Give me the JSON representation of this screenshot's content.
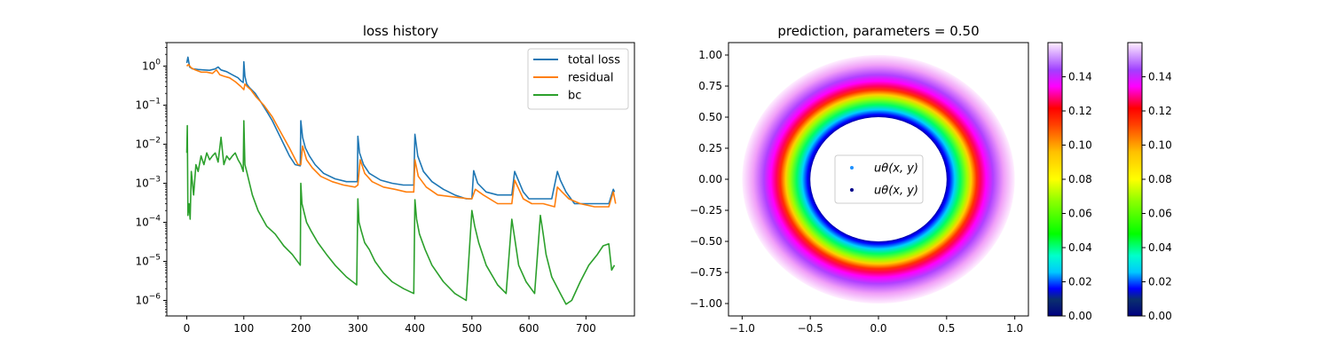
{
  "chart_data": [
    {
      "type": "line",
      "title": "loss history",
      "xlabel": "",
      "ylabel": "",
      "xlim": [
        -35,
        785
      ],
      "ylim": [
        4e-07,
        4
      ],
      "yscale": "log",
      "xticks": [
        "0",
        "100",
        "200",
        "300",
        "400",
        "500",
        "600",
        "700"
      ],
      "xtick_values": [
        0,
        100,
        200,
        300,
        400,
        500,
        600,
        700
      ],
      "yticks": [
        "10^-6",
        "10^-5",
        "10^-4",
        "10^-3",
        "10^-2",
        "10^-1",
        "10^0"
      ],
      "ytick_values": [
        1e-06,
        1e-05,
        0.0001,
        0.001,
        0.01,
        0.1,
        1
      ],
      "legend_position": "top-right",
      "series": [
        {
          "name": "total loss",
          "color": "#1f77b4",
          "x": [
            0,
            2,
            5,
            10,
            20,
            30,
            40,
            50,
            55,
            60,
            70,
            80,
            90,
            95,
            99,
            100,
            102,
            105,
            110,
            120,
            130,
            140,
            150,
            160,
            170,
            180,
            190,
            199,
            200,
            203,
            208,
            215,
            225,
            240,
            260,
            280,
            299,
            300,
            303,
            310,
            320,
            340,
            360,
            380,
            398,
            400,
            405,
            415,
            430,
            450,
            470,
            490,
            500,
            503,
            510,
            525,
            545,
            570,
            575,
            590,
            600,
            620,
            640,
            650,
            655,
            665,
            680,
            700,
            720,
            740,
            748,
            750
          ],
          "y": [
            1.2,
            1.7,
            0.95,
            0.85,
            0.82,
            0.8,
            0.78,
            0.85,
            0.95,
            0.8,
            0.72,
            0.6,
            0.5,
            0.42,
            0.38,
            1.3,
            0.55,
            0.35,
            0.28,
            0.2,
            0.12,
            0.07,
            0.04,
            0.02,
            0.01,
            0.005,
            0.003,
            0.0028,
            0.04,
            0.015,
            0.008,
            0.005,
            0.003,
            0.0018,
            0.0013,
            0.0011,
            0.0011,
            0.016,
            0.006,
            0.003,
            0.0018,
            0.0012,
            0.001,
            0.0009,
            0.0009,
            0.018,
            0.005,
            0.002,
            0.0011,
            0.0007,
            0.0005,
            0.0004,
            0.0004,
            0.0021,
            0.001,
            0.0006,
            0.0005,
            0.0005,
            0.002,
            0.0006,
            0.0004,
            0.0004,
            0.0004,
            0.002,
            0.0012,
            0.0006,
            0.0003,
            0.0003,
            0.0003,
            0.0003,
            0.0007,
            0.0006
          ]
        },
        {
          "name": "residual",
          "color": "#ff7f0e",
          "x": [
            0,
            3,
            8,
            15,
            25,
            35,
            45,
            52,
            58,
            65,
            75,
            85,
            95,
            100,
            102,
            106,
            112,
            122,
            135,
            150,
            165,
            180,
            195,
            200,
            203,
            210,
            220,
            235,
            255,
            275,
            295,
            300,
            304,
            312,
            325,
            345,
            365,
            385,
            398,
            400,
            406,
            420,
            440,
            465,
            495,
            500,
            506,
            520,
            545,
            570,
            575,
            590,
            605,
            625,
            645,
            650,
            658,
            670,
            690,
            715,
            740,
            748,
            752
          ],
          "y": [
            1.0,
            1.1,
            0.9,
            0.8,
            0.7,
            0.7,
            0.65,
            0.8,
            0.6,
            0.55,
            0.5,
            0.4,
            0.3,
            0.25,
            0.35,
            0.3,
            0.25,
            0.16,
            0.1,
            0.05,
            0.02,
            0.008,
            0.003,
            0.003,
            0.009,
            0.004,
            0.0025,
            0.0015,
            0.0011,
            0.0009,
            0.0008,
            0.0009,
            0.004,
            0.0018,
            0.0011,
            0.0008,
            0.0007,
            0.0006,
            0.0006,
            0.004,
            0.0015,
            0.0008,
            0.0005,
            0.00045,
            0.0004,
            0.0004,
            0.0007,
            0.0005,
            0.0003,
            0.0003,
            0.0012,
            0.0004,
            0.0003,
            0.0003,
            0.00025,
            0.0008,
            0.0006,
            0.0004,
            0.0003,
            0.00025,
            0.00025,
            0.0006,
            0.0003
          ]
        },
        {
          "name": "bc",
          "color": "#2ca02c",
          "x": [
            0,
            1,
            2,
            4,
            6,
            8,
            12,
            16,
            20,
            25,
            30,
            35,
            40,
            45,
            50,
            55,
            60,
            65,
            70,
            75,
            80,
            85,
            90,
            95,
            99,
            100,
            102,
            105,
            110,
            115,
            125,
            140,
            155,
            170,
            185,
            199,
            200,
            202,
            205,
            210,
            218,
            230,
            245,
            260,
            280,
            298,
            300,
            302,
            306,
            312,
            320,
            330,
            345,
            360,
            380,
            398,
            400,
            403,
            408,
            418,
            430,
            450,
            470,
            490,
            500,
            505,
            512,
            525,
            545,
            560,
            570,
            575,
            582,
            595,
            610,
            620,
            625,
            630,
            640,
            655,
            665,
            675,
            690,
            705,
            720,
            730,
            740,
            745,
            750
          ],
          "y": [
            0.006,
            0.03,
            0.00015,
            0.0003,
            0.00012,
            0.002,
            0.0005,
            0.003,
            0.002,
            0.005,
            0.003,
            0.006,
            0.004,
            0.005,
            0.006,
            0.0035,
            0.015,
            0.003,
            0.005,
            0.004,
            0.005,
            0.006,
            0.004,
            0.003,
            0.002,
            0.04,
            0.003,
            0.002,
            0.001,
            0.0005,
            0.0002,
            8e-05,
            5e-05,
            2.5e-05,
            1.5e-05,
            8e-06,
            0.001,
            0.0003,
            0.0002,
            0.0001,
            6e-05,
            3e-05,
            1.5e-05,
            8e-06,
            4e-06,
            2.5e-06,
            0.0004,
            0.0001,
            6e-05,
            3e-05,
            2e-05,
            1e-05,
            5e-06,
            3e-06,
            2e-06,
            1.5e-06,
            0.00038,
            0.00012,
            5e-05,
            2e-05,
            8e-06,
            3e-06,
            1.5e-06,
            1e-06,
            0.0002,
            8e-05,
            3e-05,
            8e-06,
            2.5e-06,
            1.5e-06,
            0.00012,
            4e-05,
            8e-06,
            3e-06,
            1.5e-06,
            0.00015,
            5e-05,
            1.5e-05,
            4e-06,
            1.5e-06,
            8e-07,
            1e-06,
            3e-06,
            8e-06,
            1.5e-05,
            2.5e-05,
            2.8e-05,
            6e-06,
            8e-06
          ]
        }
      ]
    },
    {
      "type": "scatter",
      "title": "prediction, parameters = 0.50",
      "xlabel": "",
      "ylabel": "",
      "xlim": [
        -1.1,
        1.1
      ],
      "ylim": [
        -1.1,
        1.1
      ],
      "xticks": [
        "−1.0",
        "−0.5",
        "0.0",
        "0.5",
        "1.0"
      ],
      "xtick_values": [
        -1.0,
        -0.5,
        0.0,
        0.5,
        1.0
      ],
      "yticks": [
        "−1.00",
        "−0.75",
        "−0.50",
        "−0.25",
        "0.00",
        "0.25",
        "0.50",
        "0.75",
        "1.00"
      ],
      "ytick_values": [
        -1.0,
        -0.75,
        -0.5,
        -0.25,
        0.0,
        0.25,
        0.5,
        0.75,
        1.0
      ],
      "domain": {
        "shape": "annulus",
        "inner_radius": 0.5,
        "outer_radius": 1.0
      },
      "value_profile": {
        "radius": [
          0.5,
          0.55,
          0.6,
          0.65,
          0.7,
          0.75,
          0.8,
          0.9,
          1.0
        ],
        "u": [
          0.0,
          0.02,
          0.05,
          0.08,
          0.1,
          0.12,
          0.135,
          0.15,
          0.16
        ]
      },
      "colormap": "gist_ncar",
      "legend_position": "center",
      "legend": [
        {
          "label": "uθ(x, y)",
          "color": "#1e90ff"
        },
        {
          "label": "uθ(x, y)",
          "color": "#00008b"
        }
      ],
      "colorbars": [
        {
          "ticks": [
            "0.00",
            "0.02",
            "0.04",
            "0.06",
            "0.08",
            "0.10",
            "0.12",
            "0.14"
          ],
          "tick_values": [
            0,
            0.02,
            0.04,
            0.06,
            0.08,
            0.1,
            0.12,
            0.14
          ],
          "range": [
            0,
            0.16
          ]
        },
        {
          "ticks": [
            "0.00",
            "0.02",
            "0.04",
            "0.06",
            "0.08",
            "0.10",
            "0.12",
            "0.14"
          ],
          "tick_values": [
            0,
            0.02,
            0.04,
            0.06,
            0.08,
            0.1,
            0.12,
            0.14
          ],
          "range": [
            0,
            0.16
          ]
        }
      ]
    }
  ]
}
